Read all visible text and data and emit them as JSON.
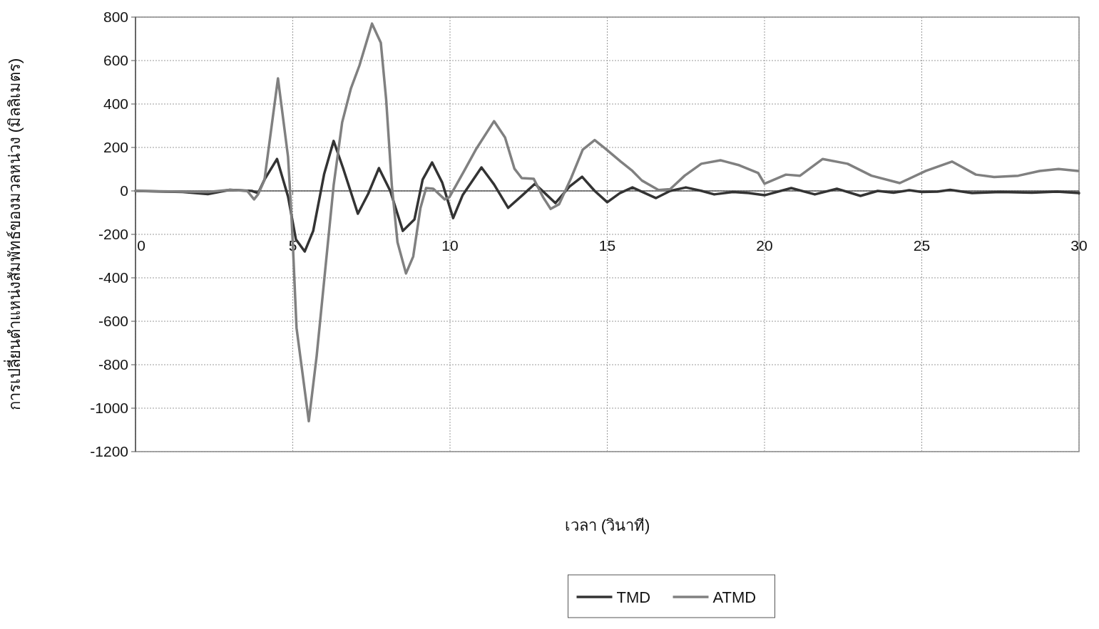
{
  "chart_data": {
    "type": "line",
    "xlabel": "เวลา (วินาที)",
    "ylabel": "การเปลี่ยนตำแหน่งสัมพัทธ์ของมวลหน่วง (มิลลิเมตร)",
    "xlim": [
      0,
      30
    ],
    "xticks": [
      0,
      5,
      10,
      15,
      20,
      25,
      30
    ],
    "ylim": [
      -1200,
      800
    ],
    "yticks": [
      -1200,
      -1000,
      -800,
      -600,
      -400,
      -200,
      0,
      200,
      400,
      600,
      800
    ],
    "grid": true,
    "legend": "bottom",
    "line_style": "solid",
    "series": [
      {
        "name": "TMD",
        "color": "#333333",
        "x": [
          0,
          1.5,
          2.3,
          3.0,
          3.7,
          3.9,
          4.1,
          4.5,
          4.85,
          5.1,
          5.38,
          5.65,
          6.0,
          6.3,
          6.6,
          7.07,
          7.4,
          7.74,
          8.1,
          8.5,
          8.87,
          9.13,
          9.43,
          9.75,
          10.1,
          10.4,
          11.0,
          11.4,
          11.85,
          12.3,
          12.7,
          13.35,
          13.8,
          14.2,
          14.6,
          15.0,
          15.4,
          15.8,
          16.2,
          16.55,
          17.0,
          17.5,
          18.0,
          18.4,
          19.0,
          19.5,
          20.0,
          20.85,
          21.6,
          22.3,
          23.05,
          23.6,
          24.1,
          24.6,
          25.0,
          25.5,
          25.9,
          26.6,
          27.5,
          28.5,
          29.3,
          30.0
        ],
        "values": [
          0,
          -5,
          -15,
          5,
          0,
          -10,
          52,
          147,
          -26,
          -223,
          -279,
          -184,
          79,
          230,
          105,
          -105,
          -13,
          105,
          0,
          -184,
          -131,
          52,
          131,
          39,
          -125,
          -20,
          108,
          30,
          -78,
          -20,
          33,
          -56,
          20,
          65,
          0,
          -52,
          -10,
          16,
          -10,
          -33,
          0,
          16,
          0,
          -16,
          -5,
          -10,
          -20,
          13,
          -16,
          10,
          -23,
          0,
          -8,
          3,
          -5,
          -3,
          5,
          -10,
          -5,
          -8,
          -3,
          -10
        ]
      },
      {
        "name": "ATMD",
        "color": "#808080",
        "x": [
          0,
          2.3,
          3.0,
          3.55,
          3.77,
          3.9,
          4.1,
          4.53,
          4.85,
          4.93,
          5.0,
          5.12,
          5.51,
          5.76,
          6.03,
          6.3,
          6.57,
          6.85,
          7.12,
          7.52,
          7.8,
          7.97,
          8.15,
          8.33,
          8.6,
          8.83,
          9.06,
          9.24,
          9.47,
          9.83,
          9.98,
          10.45,
          10.82,
          11.4,
          11.75,
          12.05,
          12.28,
          12.66,
          12.96,
          13.2,
          13.47,
          13.85,
          14.22,
          14.6,
          14.98,
          15.43,
          15.8,
          16.1,
          16.63,
          17.0,
          17.46,
          17.99,
          18.6,
          19.2,
          19.8,
          20.0,
          20.68,
          21.13,
          21.85,
          22.64,
          23.4,
          24.3,
          25.13,
          25.96,
          26.72,
          27.3,
          28.07,
          28.75,
          29.35,
          29.97
        ],
        "values": [
          0,
          -5,
          5,
          0,
          -39,
          -15,
          50,
          518,
          157,
          -39,
          -236,
          -630,
          -1060,
          -760,
          -367,
          26,
          315,
          472,
          577,
          770,
          682,
          420,
          26,
          -236,
          -380,
          -302,
          -79,
          13,
          10,
          -39,
          -29,
          92,
          190,
          321,
          246,
          102,
          59,
          56,
          -29,
          -83,
          -61,
          59,
          190,
          234,
          190,
          135,
          92,
          48,
          4,
          8,
          70,
          125,
          141,
          118,
          82,
          33,
          75,
          70,
          147,
          125,
          70,
          36,
          92,
          135,
          75,
          64,
          70,
          92,
          101,
          92
        ]
      }
    ]
  }
}
